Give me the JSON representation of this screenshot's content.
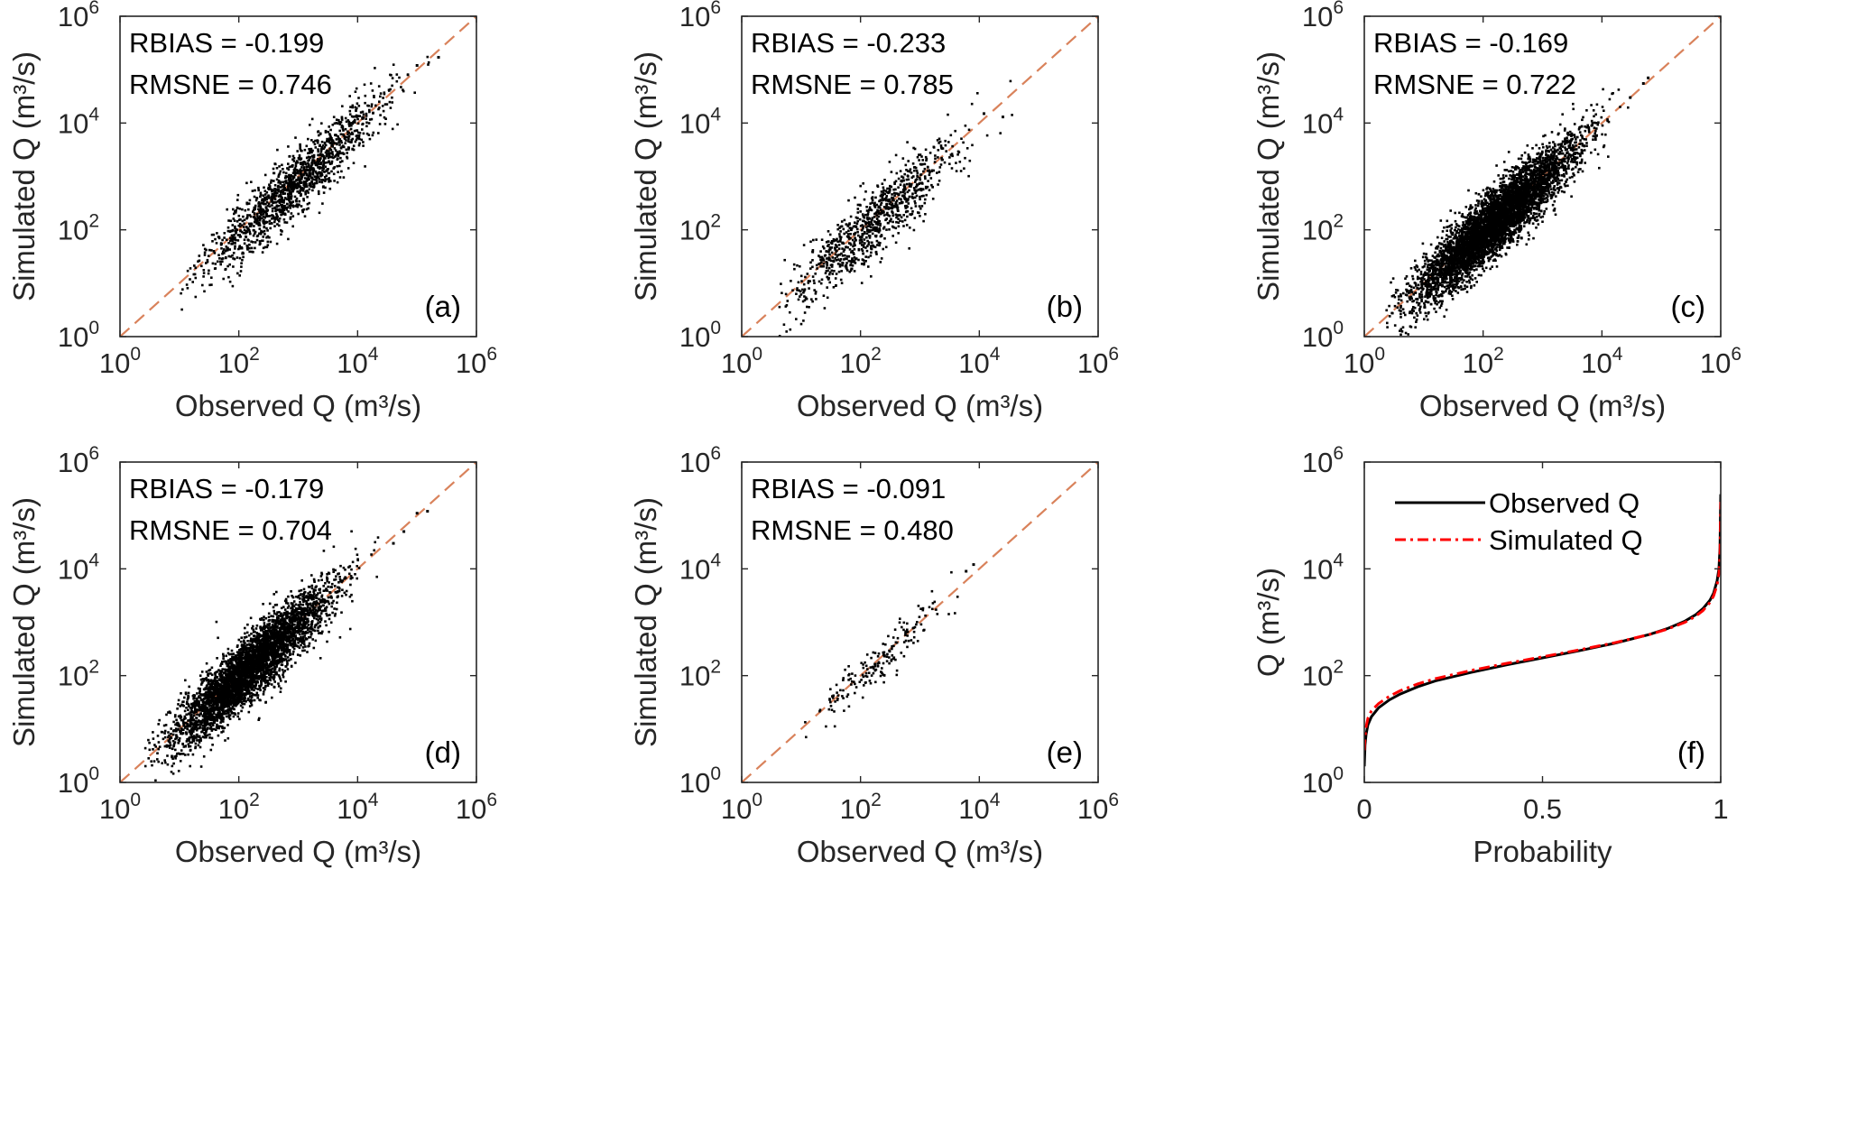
{
  "colors": {
    "background": "#ffffff",
    "axis": "#262626",
    "points": "#000000",
    "one_to_one_line": "#d9825b",
    "observed_line": "#000000",
    "simulated_line": "#ff0000"
  },
  "chart_data": [
    {
      "id": "a",
      "type": "scatter",
      "panel_label": "(a)",
      "xlabel": "Observed Q (m³/s)",
      "ylabel": "Simulated Q (m³/s)",
      "xscale": "log",
      "yscale": "log",
      "xlim": [
        1,
        1000000
      ],
      "ylim": [
        1,
        1000000
      ],
      "x_ticks": [
        {
          "base": "10",
          "exp": "0"
        },
        {
          "base": "10",
          "exp": "2"
        },
        {
          "base": "10",
          "exp": "4"
        },
        {
          "base": "10",
          "exp": "6"
        }
      ],
      "y_ticks": [
        {
          "base": "10",
          "exp": "0"
        },
        {
          "base": "10",
          "exp": "2"
        },
        {
          "base": "10",
          "exp": "4"
        },
        {
          "base": "10",
          "exp": "6"
        }
      ],
      "rbias_text": "RBIAS  = -0.199",
      "rmsne_text": "RMSNE = 0.746",
      "reference_line": "1:1 dashed",
      "cloud": {
        "n": 1400,
        "logx_min": 1.0,
        "logx_max": 5.4,
        "logx_mean": 2.95,
        "logx_sd": 0.75,
        "bias": -0.1,
        "scatter_sd": 0.3,
        "seed": 11
      },
      "extra_points": [
        [
          230000,
          170000
        ],
        [
          100000,
          120000
        ]
      ]
    },
    {
      "id": "b",
      "type": "scatter",
      "panel_label": "(b)",
      "xlabel": "Observed Q (m³/s)",
      "ylabel": "Simulated Q (m³/s)",
      "xscale": "log",
      "yscale": "log",
      "xlim": [
        1,
        1000000
      ],
      "ylim": [
        1,
        1000000
      ],
      "x_ticks": [
        {
          "base": "10",
          "exp": "0"
        },
        {
          "base": "10",
          "exp": "2"
        },
        {
          "base": "10",
          "exp": "4"
        },
        {
          "base": "10",
          "exp": "6"
        }
      ],
      "y_ticks": [
        {
          "base": "10",
          "exp": "0"
        },
        {
          "base": "10",
          "exp": "2"
        },
        {
          "base": "10",
          "exp": "4"
        },
        {
          "base": "10",
          "exp": "6"
        }
      ],
      "rbias_text": "RBIAS  = -0.233",
      "rmsne_text": "RMSNE = 0.785",
      "reference_line": "1:1 dashed",
      "cloud": {
        "n": 900,
        "logx_min": 0.6,
        "logx_max": 4.6,
        "logx_mean": 2.2,
        "logx_sd": 0.75,
        "bias": -0.1,
        "scatter_sd": 0.32,
        "seed": 22
      },
      "extra_points": [
        [
          12000,
          15000
        ],
        [
          25000,
          13000
        ]
      ]
    },
    {
      "id": "c",
      "type": "scatter",
      "panel_label": "(c)",
      "xlabel": "Observed Q (m³/s)",
      "ylabel": "Simulated Q (m³/s)",
      "xscale": "log",
      "yscale": "log",
      "xlim": [
        1,
        1000000
      ],
      "ylim": [
        1,
        1000000
      ],
      "x_ticks": [
        {
          "base": "10",
          "exp": "0"
        },
        {
          "base": "10",
          "exp": "2"
        },
        {
          "base": "10",
          "exp": "4"
        },
        {
          "base": "10",
          "exp": "6"
        }
      ],
      "y_ticks": [
        {
          "base": "10",
          "exp": "0"
        },
        {
          "base": "10",
          "exp": "2"
        },
        {
          "base": "10",
          "exp": "4"
        },
        {
          "base": "10",
          "exp": "6"
        }
      ],
      "rbias_text": "RBIAS  = -0.169",
      "rmsne_text": "RMSNE = 0.722",
      "reference_line": "1:1 dashed",
      "cloud": {
        "n": 5200,
        "logx_min": 0.35,
        "logx_max": 4.5,
        "logx_mean": 2.2,
        "logx_sd": 0.65,
        "bias": -0.05,
        "scatter_sd": 0.3,
        "seed": 33
      },
      "extra_points": [
        [
          60000,
          70000
        ],
        [
          50000,
          55000
        ],
        [
          30000,
          30000
        ]
      ]
    },
    {
      "id": "d",
      "type": "scatter",
      "panel_label": "(d)",
      "xlabel": "Observed Q (m³/s)",
      "ylabel": "Simulated Q (m³/s)",
      "xscale": "log",
      "yscale": "log",
      "xlim": [
        1,
        1000000
      ],
      "ylim": [
        1,
        1000000
      ],
      "x_ticks": [
        {
          "base": "10",
          "exp": "0"
        },
        {
          "base": "10",
          "exp": "2"
        },
        {
          "base": "10",
          "exp": "4"
        },
        {
          "base": "10",
          "exp": "6"
        }
      ],
      "y_ticks": [
        {
          "base": "10",
          "exp": "0"
        },
        {
          "base": "10",
          "exp": "2"
        },
        {
          "base": "10",
          "exp": "4"
        },
        {
          "base": "10",
          "exp": "6"
        }
      ],
      "rbias_text": "RBIAS  = -0.179",
      "rmsne_text": "RMSNE = 0.704",
      "reference_line": "1:1 dashed",
      "cloud": {
        "n": 4200,
        "logx_min": 0.4,
        "logx_max": 4.6,
        "logx_mean": 2.2,
        "logx_sd": 0.65,
        "bias": -0.05,
        "scatter_sd": 0.3,
        "seed": 44
      },
      "extra_points": [
        [
          150000,
          120000
        ],
        [
          100000,
          110000
        ],
        [
          60000,
          50000
        ],
        [
          40000,
          30000
        ]
      ]
    },
    {
      "id": "e",
      "type": "scatter",
      "panel_label": "(e)",
      "xlabel": "Observed Q (m³/s)",
      "ylabel": "Simulated Q (m³/s)",
      "xscale": "log",
      "yscale": "log",
      "xlim": [
        1,
        1000000
      ],
      "ylim": [
        1,
        1000000
      ],
      "x_ticks": [
        {
          "base": "10",
          "exp": "0"
        },
        {
          "base": "10",
          "exp": "2"
        },
        {
          "base": "10",
          "exp": "4"
        },
        {
          "base": "10",
          "exp": "6"
        }
      ],
      "y_ticks": [
        {
          "base": "10",
          "exp": "0"
        },
        {
          "base": "10",
          "exp": "2"
        },
        {
          "base": "10",
          "exp": "4"
        },
        {
          "base": "10",
          "exp": "6"
        }
      ],
      "rbias_text": "RBIAS  = -0.091",
      "rmsne_text": "RMSNE = 0.480",
      "reference_line": "1:1 dashed",
      "cloud": {
        "n": 180,
        "logx_min": 1.0,
        "logx_max": 3.9,
        "logx_mean": 2.3,
        "logx_sd": 0.55,
        "bias": -0.04,
        "scatter_sd": 0.2,
        "seed": 55
      },
      "extra_points": [
        [
          8000,
          12000
        ],
        [
          6000,
          9000
        ]
      ]
    },
    {
      "id": "f",
      "type": "line",
      "panel_label": "(f)",
      "xlabel": "Probability",
      "ylabel": "Q (m³/s)",
      "xscale": "linear",
      "yscale": "log",
      "xlim": [
        0,
        1
      ],
      "ylim": [
        1,
        1000000
      ],
      "x_ticks": [
        {
          "text": "0",
          "value": 0
        },
        {
          "text": "0.5",
          "value": 0.5
        },
        {
          "text": "1",
          "value": 1
        }
      ],
      "y_ticks": [
        {
          "base": "10",
          "exp": "0"
        },
        {
          "base": "10",
          "exp": "2"
        },
        {
          "base": "10",
          "exp": "4"
        },
        {
          "base": "10",
          "exp": "6"
        }
      ],
      "legend_position": "top-left",
      "series": [
        {
          "name": "Observed Q",
          "style": "solid",
          "color": "#000000",
          "x": [
            0,
            0.002,
            0.005,
            0.01,
            0.02,
            0.04,
            0.07,
            0.1,
            0.15,
            0.2,
            0.3,
            0.4,
            0.5,
            0.6,
            0.7,
            0.8,
            0.85,
            0.9,
            0.93,
            0.95,
            0.97,
            0.98,
            0.99,
            0.995,
            0.998,
            1.0
          ],
          "y": [
            2,
            5,
            8,
            12,
            17,
            25,
            35,
            45,
            62,
            80,
            115,
            160,
            215,
            290,
            400,
            590,
            760,
            1050,
            1380,
            1800,
            2600,
            3500,
            6000,
            10000,
            25000,
            250000
          ]
        },
        {
          "name": "Simulated Q",
          "style": "dashdot",
          "color": "#ff0000",
          "x": [
            0,
            0.002,
            0.005,
            0.01,
            0.02,
            0.04,
            0.07,
            0.1,
            0.15,
            0.2,
            0.3,
            0.4,
            0.5,
            0.6,
            0.7,
            0.8,
            0.85,
            0.9,
            0.93,
            0.95,
            0.97,
            0.98,
            0.99,
            0.995,
            0.998,
            1.0
          ],
          "y": [
            4,
            7,
            11,
            16,
            22,
            30,
            41,
            52,
            70,
            88,
            125,
            170,
            225,
            300,
            410,
            590,
            740,
            1000,
            1300,
            1650,
            2350,
            3100,
            5000,
            8000,
            18000,
            180000
          ]
        }
      ]
    }
  ]
}
